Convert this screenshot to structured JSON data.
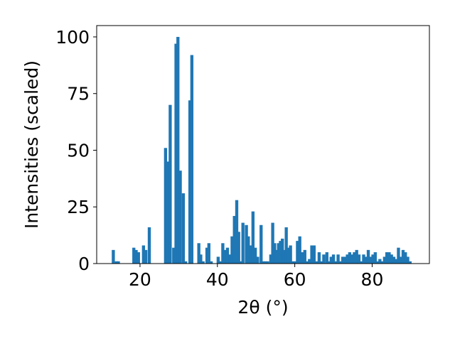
{
  "chart_data": {
    "type": "bar",
    "xlabel": "2θ (°)",
    "ylabel": "Intensities (scaled)",
    "xlim": [
      8.8,
      94.8
    ],
    "ylim": [
      0,
      105
    ],
    "x_ticks": [
      20,
      40,
      60,
      80
    ],
    "y_ticks": [
      0,
      25,
      50,
      75,
      100
    ],
    "bar_color": "#1f77b4",
    "bar_width": 0.8,
    "grid": false,
    "series": [
      {
        "x": [
          13.1,
          13.9,
          14.4,
          18.4,
          19.0,
          19.6,
          20.9,
          21.5,
          22.4,
          26.6,
          27.2,
          27.8,
          28.7,
          29.3,
          29.8,
          30.4,
          31.2,
          31.8,
          32.9,
          33.4,
          35.2,
          35.7,
          36.3,
          37.3,
          37.8,
          38.4,
          40.2,
          40.8,
          41.4,
          42.0,
          42.6,
          43.2,
          43.8,
          44.4,
          45.0,
          45.5,
          46.1,
          46.6,
          47.5,
          48.0,
          48.6,
          49.2,
          49.8,
          50.4,
          51.3,
          51.8,
          52.4,
          53.0,
          53.8,
          54.3,
          54.8,
          55.3,
          55.8,
          56.3,
          56.8,
          57.3,
          57.8,
          58.3,
          58.9,
          59.5,
          60.1,
          60.7,
          61.3,
          61.9,
          62.6,
          63.2,
          63.8,
          64.4,
          65.0,
          65.6,
          66.3,
          66.9,
          67.5,
          68.3,
          68.8,
          69.4,
          70.0,
          70.6,
          71.2,
          71.8,
          72.4,
          73.0,
          73.6,
          74.2,
          74.8,
          75.4,
          76.0,
          76.6,
          77.2,
          77.8,
          78.4,
          79.0,
          79.6,
          80.2,
          80.8,
          81.4,
          82.0,
          82.6,
          83.2,
          83.8,
          84.4,
          85.0,
          85.6,
          86.2,
          86.8,
          87.4,
          88.0,
          88.6,
          89.2,
          89.8
        ],
        "values": [
          6,
          1,
          1,
          7,
          6,
          5,
          8,
          6,
          16,
          51,
          45,
          70,
          7,
          97,
          100,
          41,
          31,
          1,
          72,
          92,
          9,
          4,
          1,
          7,
          9,
          1,
          3,
          1,
          9,
          6,
          7,
          4,
          12,
          21,
          28,
          14,
          1,
          18,
          17,
          12,
          8,
          23,
          7,
          3,
          17,
          1,
          1,
          1,
          4,
          18,
          9,
          6,
          9,
          10,
          11,
          6,
          16,
          7,
          8,
          1,
          1,
          10,
          12,
          5,
          6,
          1,
          2,
          8,
          8,
          1,
          5,
          1,
          4,
          5,
          1,
          3,
          4,
          1,
          4,
          1,
          3,
          3,
          4,
          5,
          4,
          5,
          6,
          4,
          1,
          4,
          3,
          6,
          3,
          4,
          5,
          1,
          2,
          1,
          3,
          5,
          5,
          4,
          3,
          2,
          7,
          3,
          6,
          5,
          3,
          1
        ]
      }
    ]
  }
}
